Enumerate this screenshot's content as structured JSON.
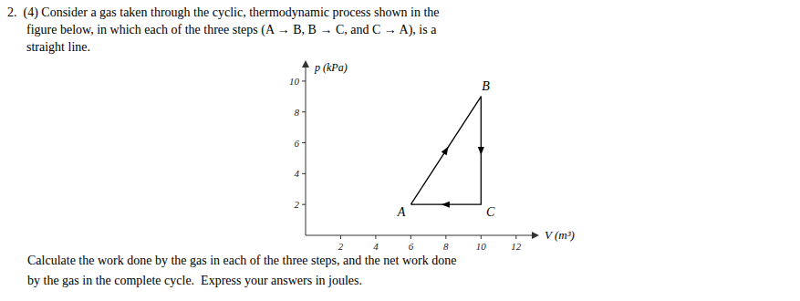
{
  "chart_data": {
    "type": "line",
    "annotations": [
      "2.  (4) Consider a gas taken through the cyclic, thermodynamic process shown in the",
      "      figure below, in which each of the three steps (A → B, B → C, and C → A), is a",
      "      straight line.",
      "Calculate the work done by the gas in each of the three steps, and the net work done",
      "by the gas in the complete cycle.  Express your answers in joules."
    ],
    "x": [
      6,
      10,
      10,
      6
    ],
    "values": [
      2,
      9,
      2,
      2
    ],
    "labels": [
      "A",
      "B",
      "C",
      null
    ],
    "color": "black",
    "xlim": [
      0,
      13
    ],
    "ylim": [
      0,
      11
    ],
    "xticks": [
      2,
      4,
      6,
      8,
      10,
      12
    ],
    "yticks": [
      2,
      4,
      6,
      8,
      10
    ],
    "xlabel": "V (m³)",
    "ylabel": "p (kPa)",
    "grid": false
  }
}
